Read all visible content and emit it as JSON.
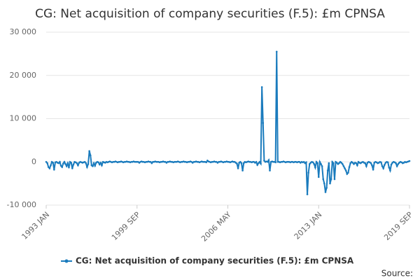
{
  "chart_data": {
    "type": "line",
    "title": "CG: Net acquisition of company securities (F.5): £m CPNSA",
    "source": "Source:",
    "categories": [
      "1993 JAN",
      null,
      null,
      null,
      null,
      null,
      null,
      null,
      null,
      null,
      null,
      null,
      null,
      null,
      null,
      null,
      null,
      null,
      null,
      null,
      null,
      null,
      null,
      null,
      null,
      null,
      null,
      null,
      null,
      null,
      null,
      null,
      null,
      null,
      null,
      null,
      null,
      null,
      null,
      null,
      null,
      null,
      null,
      null,
      null,
      null,
      null,
      null,
      null,
      null,
      null,
      null,
      null,
      null,
      null,
      null,
      null,
      null,
      null,
      null,
      null,
      null,
      null,
      null,
      null,
      null,
      null,
      null,
      null,
      null,
      null,
      null,
      null,
      null,
      null,
      null,
      null,
      null,
      null,
      null,
      "1999 SEP",
      null,
      null,
      null,
      null,
      null,
      null,
      null,
      null,
      null,
      null,
      null,
      null,
      null,
      null,
      null,
      null,
      null,
      null,
      null,
      null,
      null,
      null,
      null,
      null,
      null,
      null,
      null,
      null,
      null,
      null,
      null,
      null,
      null,
      null,
      null,
      null,
      null,
      null,
      null,
      null,
      null,
      null,
      null,
      null,
      null,
      null,
      null,
      null,
      null,
      null,
      null,
      null,
      null,
      null,
      null,
      null,
      null,
      null,
      null,
      null,
      null,
      null,
      null,
      null,
      null,
      null,
      null,
      null,
      null,
      null,
      null,
      null,
      null,
      null,
      null,
      null,
      null,
      null,
      null,
      "2006 MAY",
      null,
      null,
      null,
      null,
      null,
      null,
      null,
      null,
      null,
      null,
      null,
      null,
      null,
      null,
      null,
      null,
      null,
      null,
      null,
      null,
      null,
      null,
      null,
      null,
      null,
      null,
      null,
      null,
      null,
      null,
      null,
      null,
      null,
      null,
      null,
      null,
      null,
      null,
      null,
      null,
      null,
      null,
      null,
      null,
      null,
      null,
      null,
      null,
      null,
      null,
      null,
      null,
      null,
      null,
      null,
      null,
      null,
      null,
      null,
      null,
      null,
      null,
      null,
      null,
      null,
      null,
      null,
      null,
      null,
      null,
      null,
      null,
      null,
      null,
      null,
      null,
      null,
      null,
      null,
      "2013 JAN",
      null,
      null,
      null,
      null,
      null,
      null,
      null,
      null,
      null,
      null,
      null,
      null,
      null,
      null,
      null,
      null,
      null,
      null,
      null,
      null,
      null,
      null,
      null,
      null,
      null,
      null,
      null,
      null,
      null,
      null,
      null,
      null,
      null,
      null,
      null,
      null,
      null,
      null,
      null,
      null,
      null,
      null,
      null,
      null,
      null,
      null,
      null,
      null,
      null,
      null,
      null,
      null,
      null,
      null,
      null,
      null,
      null,
      null,
      null,
      null,
      null,
      null,
      null,
      null,
      null,
      null,
      null,
      null,
      null,
      null,
      null,
      null,
      null,
      null,
      null,
      null,
      null,
      null,
      null,
      "2019 SEP"
    ],
    "series": [
      {
        "name": "CG: Net acquisition of company securities (F.5): £m CPNSA",
        "color": "#1a7bbd",
        "values": [
          0,
          -300,
          -1200,
          -1500,
          -800,
          0,
          -200,
          -1800,
          -100,
          0,
          -200,
          -300,
          0,
          -900,
          -1200,
          -400,
          0,
          -500,
          -1000,
          -300,
          -1300,
          0,
          -200,
          -1500,
          -600,
          0,
          -100,
          -300,
          -800,
          -200,
          0,
          -100,
          -200,
          -100,
          0,
          -300,
          -1200,
          -500,
          2500,
          1500,
          -800,
          -1000,
          -300,
          -900,
          -200,
          0,
          -100,
          -600,
          -200,
          -800,
          0,
          -100,
          -200,
          0,
          -100,
          0,
          100,
          0,
          -100,
          0,
          0,
          100,
          0,
          -100,
          0,
          0,
          100,
          0,
          -100,
          0,
          0,
          100,
          0,
          0,
          -100,
          0,
          0,
          100,
          0,
          0,
          0,
          0,
          -200,
          0,
          100,
          0,
          0,
          -100,
          0,
          0,
          100,
          0,
          0,
          -300,
          0,
          0,
          100,
          0,
          0,
          0,
          -100,
          0,
          0,
          100,
          0,
          0,
          -200,
          0,
          0,
          100,
          0,
          0,
          -100,
          0,
          0,
          0,
          100,
          0,
          -100,
          0,
          0,
          100,
          0,
          0,
          -100,
          0,
          0,
          100,
          0,
          -200,
          0,
          0,
          100,
          0,
          0,
          -100,
          0,
          100,
          0,
          0,
          0,
          -100,
          300,
          100,
          0,
          -100,
          0,
          0,
          100,
          0,
          0,
          -200,
          0,
          0,
          100,
          0,
          -100,
          0,
          0,
          100,
          0,
          0,
          -100,
          0,
          100,
          0,
          0,
          -200,
          -400,
          -1500,
          -200,
          0,
          -300,
          -2000,
          -300,
          0,
          -100,
          0,
          100,
          0,
          0,
          -100,
          0,
          0,
          -200,
          0,
          -700,
          -300,
          0,
          -400,
          17300,
          9000,
          300,
          0,
          100,
          0,
          400,
          -2000,
          0,
          100,
          0,
          0,
          -100,
          25500,
          0,
          0,
          -100,
          0,
          0,
          100,
          0,
          -100,
          0,
          0,
          0,
          -100,
          0,
          0,
          -100,
          0,
          0,
          -100,
          0,
          0,
          -200,
          0,
          -100,
          0,
          -300,
          -100,
          -7500,
          -2500,
          -500,
          -200,
          0,
          -100,
          -500,
          -1300,
          0,
          -300,
          -3500,
          0,
          -500,
          -1000,
          -4000,
          -5000,
          -7000,
          -6000,
          -2000,
          -300,
          -5000,
          -4000,
          0,
          -300,
          -4000,
          0,
          -200,
          -500,
          -300,
          0,
          -200,
          -500,
          -1000,
          -1500,
          -2000,
          -2800,
          -2500,
          -1200,
          -300,
          0,
          -200,
          -500,
          -200,
          -300,
          -800,
          0,
          -200,
          -300,
          -100,
          0,
          -200,
          -300,
          -1000,
          -200,
          0,
          -100,
          -300,
          -800,
          -1800,
          -200,
          0,
          -100,
          -300,
          -200,
          0,
          -100,
          -1000,
          -1500,
          -700,
          -200,
          0,
          -100,
          -1300,
          -2000,
          -600,
          -200,
          0,
          -100,
          -300,
          -1000,
          -500,
          -200,
          0,
          -100,
          -300,
          -200,
          0,
          -100,
          0,
          100,
          200
        ]
      }
    ],
    "ylim": [
      -10000,
      30000
    ],
    "yticks": [
      {
        "value": -10000,
        "label": "-10 000"
      },
      0,
      {
        "value": 10000,
        "label": "10 000"
      },
      {
        "value": 20000,
        "label": "20 000"
      },
      {
        "value": 30000,
        "label": "30 000"
      }
    ],
    "grid": true
  }
}
